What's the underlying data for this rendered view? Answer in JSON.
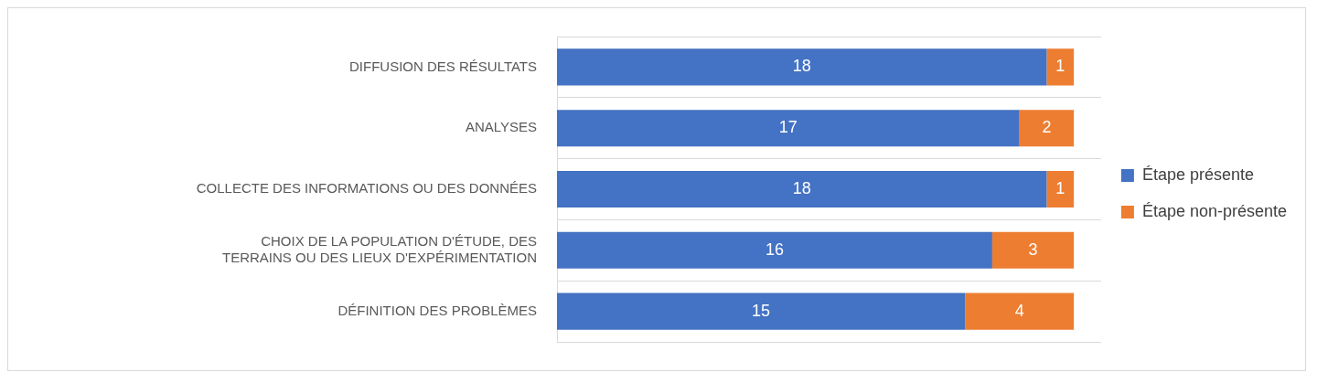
{
  "chart_data": {
    "type": "bar",
    "orientation": "horizontal",
    "stacked": true,
    "categories": [
      "DIFFUSION DES RÉSULTATS",
      "ANALYSES",
      "COLLECTE DES INFORMATIONS OU DES DONNÉES",
      "CHOIX DE LA POPULATION D'ÉTUDE, DES TERRAINS OU DES LIEUX D'EXPÉRIMENTATION",
      "DÉFINITION DES PROBLÈMES"
    ],
    "series": [
      {
        "name": "Étape présente",
        "color": "#4472c4",
        "values": [
          18,
          17,
          18,
          16,
          15
        ]
      },
      {
        "name": "Étape non-présente",
        "color": "#ed7d31",
        "values": [
          1,
          2,
          1,
          3,
          4
        ]
      }
    ],
    "data_labels": true,
    "legend": "right",
    "grid": "y"
  }
}
